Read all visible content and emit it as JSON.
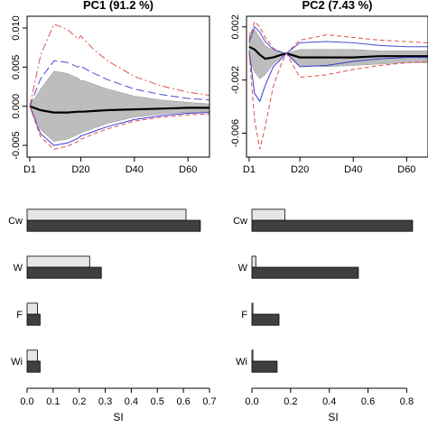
{
  "chart_data": [
    {
      "type": "line",
      "title": "PC1 (91.2 %)",
      "xlabel": "",
      "ylabel": "",
      "x_tick_labels": [
        "D1",
        "D20",
        "D40",
        "D60"
      ],
      "x_tick_values": [
        1,
        20,
        40,
        60
      ],
      "xlim": [
        0,
        68
      ],
      "ylim": [
        -0.0065,
        0.0115
      ],
      "y_tick_labels": [
        "-0.005",
        "0.000",
        "0.005",
        "0.010"
      ],
      "y_tick_values": [
        -0.005,
        0,
        0.005,
        0.01
      ],
      "x": [
        1,
        5,
        10,
        15,
        19,
        20,
        21,
        25,
        30,
        40,
        50,
        60,
        68
      ],
      "band_upper": [
        0,
        0.0022,
        0.0045,
        0.0042,
        0.0036,
        0.0033,
        0.0033,
        0.0028,
        0.0022,
        0.0013,
        0.0008,
        0.0005,
        0.0003
      ],
      "band_lower": [
        0,
        -0.003,
        -0.0045,
        -0.0042,
        -0.0036,
        -0.0034,
        -0.0033,
        -0.0028,
        -0.0022,
        -0.0014,
        -0.001,
        -0.0008,
        -0.0007
      ],
      "series": [
        {
          "values": [
            0,
            -0.0005,
            -0.0008,
            -0.0008,
            -0.0007,
            -0.0007,
            -0.0007,
            -0.0006,
            -0.0005,
            -0.0004,
            -0.0003,
            -0.0002,
            -0.0002
          ],
          "color": "#000000",
          "dash": "solid",
          "width": 2.2
        },
        {
          "values": [
            0,
            0.0065,
            0.0105,
            0.0098,
            0.0086,
            0.009,
            0.0086,
            0.0072,
            0.0058,
            0.0038,
            0.0026,
            0.0018,
            0.0014
          ],
          "color": "#e05050",
          "dash": "dashdot",
          "width": 1
        },
        {
          "values": [
            0,
            0.0035,
            0.0058,
            0.0056,
            0.005,
            0.0052,
            0.0049,
            0.0042,
            0.0034,
            0.0022,
            0.0015,
            0.001,
            0.0008
          ],
          "color": "#4a4ad0",
          "dash": "longdash",
          "width": 1
        },
        {
          "values": [
            0,
            -0.0035,
            -0.005,
            -0.0047,
            -0.0041,
            -0.0038,
            -0.0037,
            -0.0032,
            -0.0026,
            -0.0017,
            -0.0012,
            -0.0009,
            -0.0008
          ],
          "color": "#3a3ad0",
          "dash": "solid",
          "width": 1
        },
        {
          "values": [
            0,
            -0.0039,
            -0.0055,
            -0.0051,
            -0.0045,
            -0.0042,
            -0.0041,
            -0.0035,
            -0.0029,
            -0.0019,
            -0.0014,
            -0.0011,
            -0.001
          ],
          "color": "#e05050",
          "dash": "dashed",
          "width": 1
        }
      ]
    },
    {
      "type": "line",
      "title": "PC2 (7.43 %)",
      "xlabel": "",
      "ylabel": "",
      "x_tick_labels": [
        "D1",
        "D20",
        "D40",
        "D60"
      ],
      "x_tick_values": [
        1,
        20,
        40,
        60
      ],
      "xlim": [
        0,
        68
      ],
      "ylim": [
        -0.0078,
        0.0028
      ],
      "y_tick_labels": [
        "-0.006",
        "-0.002",
        "0.002"
      ],
      "y_tick_values": [
        -0.006,
        -0.002,
        0.002
      ],
      "x": [
        1,
        3,
        5,
        7,
        10,
        13,
        15,
        20,
        30,
        40,
        50,
        60,
        68
      ],
      "band_upper": [
        0.0015,
        0.0018,
        0.0012,
        0.0006,
        0.0002,
        0.0001,
        0.0,
        0.0003,
        0.0003,
        0.0003,
        0.0002,
        0.0002,
        0.0002
      ],
      "band_lower": [
        -0.0004,
        -0.0014,
        -0.0019,
        -0.0016,
        -0.0008,
        -0.0003,
        0.0,
        -0.0009,
        -0.001,
        -0.0009,
        -0.0008,
        -0.0007,
        -0.0007
      ],
      "series": [
        {
          "values": [
            0.0005,
            0.0003,
            -0.0001,
            -0.0004,
            -0.0003,
            -0.0001,
            0.0,
            -0.0003,
            -0.0003,
            -0.0003,
            -0.0002,
            -0.0002,
            -0.0002
          ],
          "color": "#000000",
          "dash": "solid",
          "width": 2.2
        },
        {
          "values": [
            0.001,
            0.0024,
            0.002,
            0.0012,
            0.0004,
            0.0001,
            0.0,
            0.001,
            0.0014,
            0.0012,
            0.001,
            0.0009,
            0.0008
          ],
          "color": "#e05050",
          "dash": "dashed",
          "width": 1
        },
        {
          "values": [
            0.0008,
            0.002,
            0.0016,
            0.0009,
            0.0003,
            0.0001,
            0.0,
            0.0008,
            0.0009,
            0.0008,
            0.0006,
            0.0005,
            0.0005
          ],
          "color": "#4a4ad0",
          "dash": "solid",
          "width": 1
        },
        {
          "values": [
            0.0002,
            -0.003,
            -0.0036,
            -0.0024,
            -0.001,
            -0.0004,
            0.0,
            -0.001,
            -0.0009,
            -0.0006,
            -0.0004,
            -0.0003,
            -0.0003
          ],
          "color": "#3a3ad0",
          "dash": "solid",
          "width": 1
        },
        {
          "values": [
            0.0,
            -0.005,
            -0.0072,
            -0.0055,
            -0.0025,
            -0.0008,
            0.0,
            -0.0018,
            -0.0016,
            -0.0012,
            -0.0009,
            -0.0007,
            -0.0006
          ],
          "color": "#e05050",
          "dash": "dashed",
          "width": 1
        }
      ]
    },
    {
      "type": "bar",
      "orientation": "horizontal",
      "categories": [
        "Cw",
        "W",
        "F",
        "Wi"
      ],
      "xlabel": "SI",
      "xlim": [
        0,
        0.7
      ],
      "x_tick_values": [
        0,
        0.1,
        0.2,
        0.3,
        0.4,
        0.5,
        0.6,
        0.7
      ],
      "x_tick_labels": [
        "0.0",
        "0.1",
        "0.2",
        "0.3",
        "0.4",
        "0.5",
        "0.6",
        "0.7"
      ],
      "series": [
        {
          "values": [
            0.61,
            0.24,
            0.04,
            0.04
          ],
          "color": "#e6e6e6"
        },
        {
          "values": [
            0.665,
            0.285,
            0.05,
            0.05
          ],
          "color": "#404040"
        }
      ]
    },
    {
      "type": "bar",
      "orientation": "horizontal",
      "categories": [
        "Cw",
        "W",
        "F",
        "Wi"
      ],
      "xlabel": "SI",
      "xlim": [
        0,
        0.84
      ],
      "x_tick_values": [
        0,
        0.2,
        0.4,
        0.6,
        0.8
      ],
      "x_tick_labels": [
        "0.0",
        "0.2",
        "0.4",
        "0.6",
        "0.8"
      ],
      "series": [
        {
          "values": [
            0.17,
            0.02,
            0.005,
            0.005
          ],
          "color": "#e6e6e6"
        },
        {
          "values": [
            0.83,
            0.55,
            0.14,
            0.13
          ],
          "color": "#404040"
        }
      ]
    }
  ]
}
